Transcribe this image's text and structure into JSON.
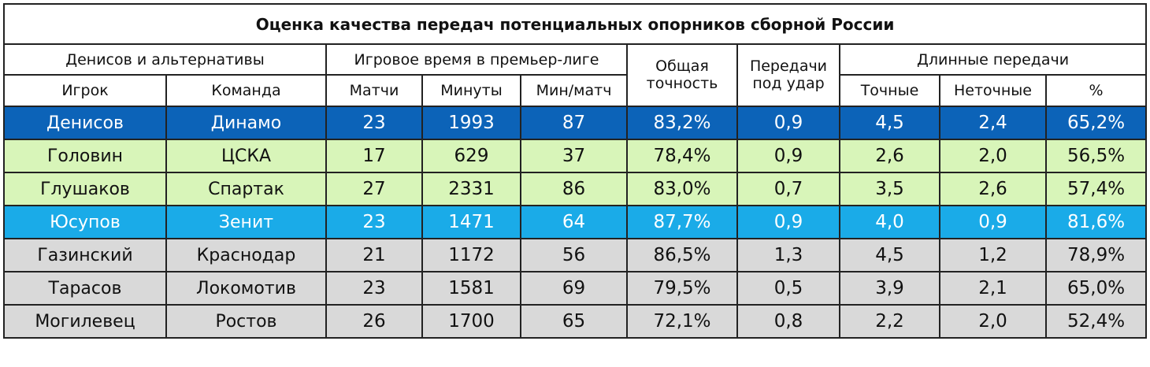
{
  "table": {
    "title": "Оценка качества передач потенциальных опорников сборной России",
    "group_headers": {
      "players": "Денисов и альтернативы",
      "playtime": "Игровое время в премьер-лиге",
      "accuracy_top": "Общая",
      "accuracy_bottom": "точность",
      "key_top": "Передачи",
      "key_bottom": "под удар",
      "long": "Длинные передачи"
    },
    "columns": {
      "player": "Игрок",
      "team": "Команда",
      "matches": "Матчи",
      "minutes": "Минуты",
      "min_per_match": "Мин/матч",
      "long_accurate": "Точные",
      "long_inaccurate": "Неточные",
      "long_pct": "%"
    },
    "rows": [
      {
        "player": "Денисов",
        "team": "Динамо",
        "matches": "23",
        "minutes": "1993",
        "min_per_match": "87",
        "accuracy": "83,2%",
        "key_passes": "0,9",
        "long_accurate": "4,5",
        "long_inaccurate": "2,4",
        "long_pct": "65,2%",
        "color": "#0c63b8"
      },
      {
        "player": "Головин",
        "team": "ЦСКА",
        "matches": "17",
        "minutes": "629",
        "min_per_match": "37",
        "accuracy": "78,4%",
        "key_passes": "0,9",
        "long_accurate": "2,6",
        "long_inaccurate": "2,0",
        "long_pct": "56,5%",
        "color": "#d8f5b9"
      },
      {
        "player": "Глушаков",
        "team": "Спартак",
        "matches": "27",
        "minutes": "2331",
        "min_per_match": "86",
        "accuracy": "83,0%",
        "key_passes": "0,7",
        "long_accurate": "3,5",
        "long_inaccurate": "2,6",
        "long_pct": "57,4%",
        "color": "#d8f5b9"
      },
      {
        "player": "Юсупов",
        "team": "Зенит",
        "matches": "23",
        "minutes": "1471",
        "min_per_match": "64",
        "accuracy": "87,7%",
        "key_passes": "0,9",
        "long_accurate": "4,0",
        "long_inaccurate": "0,9",
        "long_pct": "81,6%",
        "color": "#1aabe8"
      },
      {
        "player": "Газинский",
        "team": "Краснодар",
        "matches": "21",
        "minutes": "1172",
        "min_per_match": "56",
        "accuracy": "86,5%",
        "key_passes": "1,3",
        "long_accurate": "4,5",
        "long_inaccurate": "1,2",
        "long_pct": "78,9%",
        "color": "#d9d9d9"
      },
      {
        "player": "Тарасов",
        "team": "Локомотив",
        "matches": "23",
        "minutes": "1581",
        "min_per_match": "69",
        "accuracy": "79,5%",
        "key_passes": "0,5",
        "long_accurate": "3,9",
        "long_inaccurate": "2,1",
        "long_pct": "65,0%",
        "color": "#d9d9d9"
      },
      {
        "player": "Могилевец",
        "team": "Ростов",
        "matches": "26",
        "minutes": "1700",
        "min_per_match": "65",
        "accuracy": "72,1%",
        "key_passes": "0,8",
        "long_accurate": "2,2",
        "long_inaccurate": "2,0",
        "long_pct": "52,4%",
        "color": "#d9d9d9"
      }
    ]
  }
}
